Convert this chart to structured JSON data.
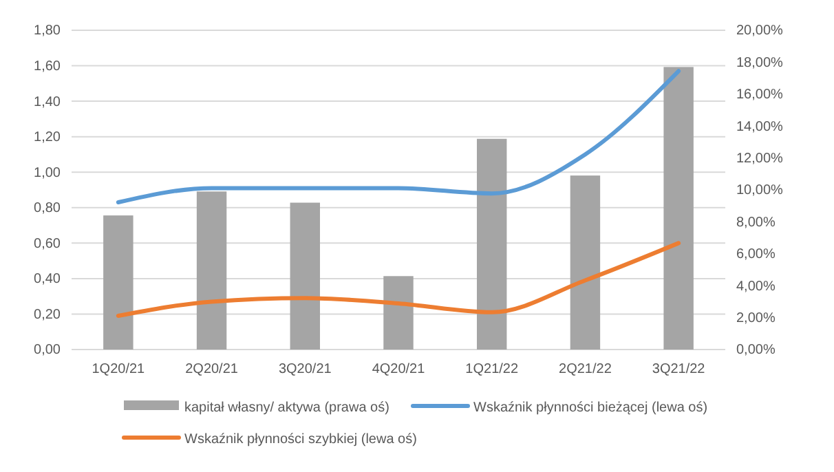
{
  "chart_data": {
    "type": "line",
    "categories": [
      "1Q20/21",
      "2Q20/21",
      "3Q20/21",
      "4Q20/21",
      "1Q21/22",
      "2Q21/22",
      "3Q21/22"
    ],
    "series": [
      {
        "name": "kapitał własny/ aktywa (prawa oś)",
        "type": "bar",
        "axis": "y2",
        "color": "#a5a5a5",
        "values": [
          8.4,
          9.9,
          9.2,
          4.6,
          13.2,
          10.9,
          17.7
        ]
      },
      {
        "name": "Wskaźnik płynności bieżącej (lewa oś)",
        "color": "#5b9bd5",
        "values": [
          0.83,
          0.91,
          0.91,
          0.91,
          0.88,
          1.1,
          1.57
        ]
      },
      {
        "name": "Wskaźnik płynności szybkiej (lewa oś)",
        "color": "#ed7d31",
        "values": [
          0.19,
          0.27,
          0.29,
          0.26,
          0.21,
          0.39,
          0.6
        ]
      }
    ],
    "ylim": [
      0,
      1.8
    ],
    "yticks": [
      {
        "value": 0,
        "label": "0,00"
      },
      {
        "value": 0.2,
        "label": "0,20"
      },
      {
        "value": 0.4,
        "label": "0,40"
      },
      {
        "value": 0.6,
        "label": "0,60"
      },
      {
        "value": 0.8,
        "label": "0,80"
      },
      {
        "value": 1,
        "label": "1,00"
      },
      {
        "value": 1.2,
        "label": "1,20"
      },
      {
        "value": 1.4,
        "label": "1,40"
      },
      {
        "value": 1.6,
        "label": "1,60"
      },
      {
        "value": 1.8,
        "label": "1,80"
      }
    ],
    "y2lim": [
      0,
      20
    ],
    "y2ticks": [
      {
        "value": 0,
        "label": "0,00%"
      },
      {
        "value": 2,
        "label": "2,00%"
      },
      {
        "value": 4,
        "label": "4,00%"
      },
      {
        "value": 6,
        "label": "6,00%"
      },
      {
        "value": 8,
        "label": "8,00%"
      },
      {
        "value": 10,
        "label": "10,00%"
      },
      {
        "value": 12,
        "label": "12,00%"
      },
      {
        "value": 14,
        "label": "14,00%"
      },
      {
        "value": 16,
        "label": "16,00%"
      },
      {
        "value": 18,
        "label": "18,00%"
      },
      {
        "value": 20,
        "label": "20,00%"
      }
    ],
    "grid": "y",
    "legend": "bottom",
    "marker": "none",
    "line_style": "solid"
  }
}
